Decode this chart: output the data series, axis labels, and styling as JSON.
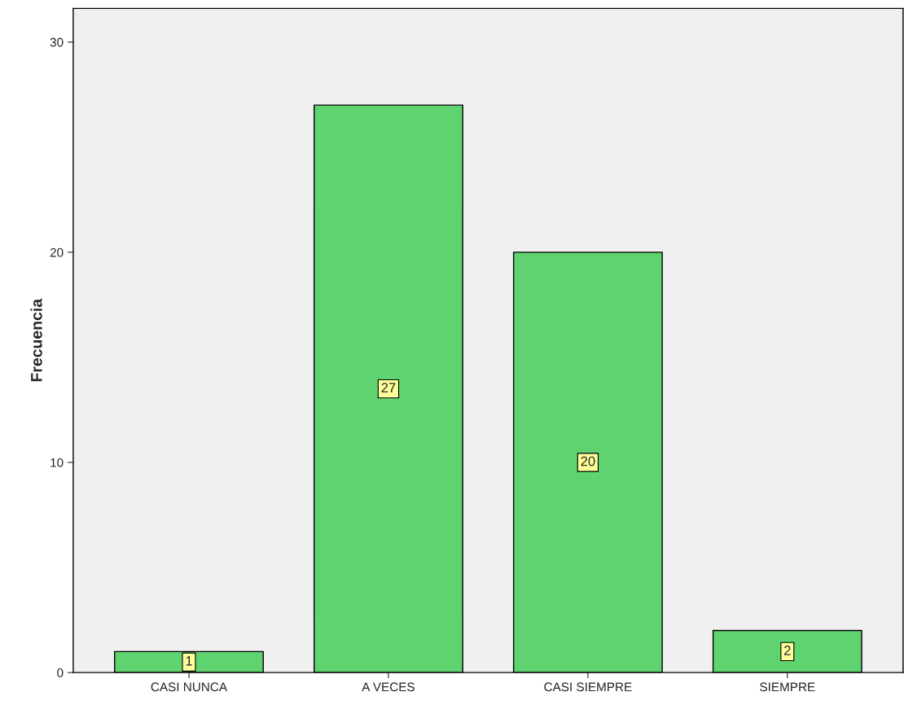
{
  "chart_data": {
    "type": "bar",
    "ylabel": "Frecuencia",
    "categories": [
      "CASI NUNCA",
      "A VECES",
      "CASI SIEMPRE",
      "SIEMPRE"
    ],
    "values": [
      1,
      27,
      20,
      2
    ],
    "color": "#5fd36f",
    "ylim": [
      0,
      31.6
    ],
    "yticks": [
      0,
      10,
      20,
      30
    ],
    "grid": false,
    "data_labels": true
  }
}
